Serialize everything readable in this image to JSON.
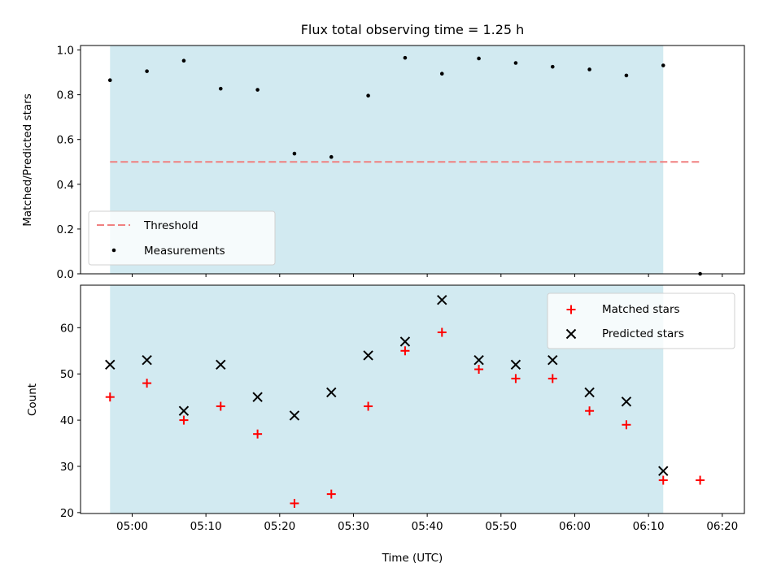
{
  "chart_data": [
    {
      "type": "scatter",
      "title": "Flux total observing time = 1.25 h",
      "xlabel": "",
      "ylabel": "Matched/Predicted stars",
      "xlim": [
        293,
        383
      ],
      "ylim": [
        0.0,
        1.02
      ],
      "yticks": [
        0.0,
        0.2,
        0.4,
        0.6,
        0.8,
        1.0
      ],
      "ytick_labels": [
        "0.0",
        "0.2",
        "0.4",
        "0.6",
        "0.8",
        "1.0"
      ],
      "xticks": [
        300,
        310,
        320,
        330,
        340,
        350,
        360,
        370,
        380
      ],
      "shaded_span": [
        297,
        372
      ],
      "shade_color": "#add8e6",
      "threshold": {
        "name": "Threshold",
        "value": 0.5,
        "x_range": [
          297,
          377
        ],
        "color": "#f08080"
      },
      "series": [
        {
          "name": "Measurements",
          "color": "#000000",
          "x": [
            297,
            302,
            307,
            312,
            317,
            322,
            327,
            332,
            337,
            342,
            347,
            352,
            357,
            362,
            367,
            372,
            377
          ],
          "y": [
            0.865,
            0.905,
            0.952,
            0.827,
            0.822,
            0.537,
            0.522,
            0.796,
            0.965,
            0.894,
            0.962,
            0.942,
            0.925,
            0.913,
            0.886,
            0.931,
            0.0
          ]
        }
      ],
      "legend": {
        "position": "lower-left",
        "entries": [
          "Threshold",
          "Measurements"
        ]
      }
    },
    {
      "type": "scatter",
      "title": "",
      "xlabel": "Time (UTC)",
      "ylabel": "Count",
      "xlim": [
        293,
        383
      ],
      "ylim": [
        19.8,
        69.2
      ],
      "yticks": [
        20,
        30,
        40,
        50,
        60
      ],
      "ytick_labels": [
        "20",
        "30",
        "40",
        "50",
        "60"
      ],
      "xticks": [
        300,
        310,
        320,
        330,
        340,
        350,
        360,
        370,
        380
      ],
      "xtick_labels": [
        "05:00",
        "05:10",
        "05:20",
        "05:30",
        "05:40",
        "05:50",
        "06:00",
        "06:10",
        "06:20"
      ],
      "shaded_span": [
        297,
        372
      ],
      "shade_color": "#add8e6",
      "series": [
        {
          "name": "Matched stars",
          "marker": "plus",
          "color": "#ff0000",
          "x": [
            297,
            302,
            307,
            312,
            317,
            322,
            327,
            332,
            337,
            342,
            347,
            352,
            357,
            362,
            367,
            372,
            377
          ],
          "y": [
            45,
            48,
            40,
            43,
            37,
            22,
            24,
            43,
            55,
            59,
            51,
            49,
            49,
            42,
            39,
            27,
            27
          ]
        },
        {
          "name": "Predicted stars",
          "marker": "x",
          "color": "#000000",
          "x": [
            297,
            302,
            307,
            312,
            317,
            322,
            327,
            332,
            337,
            342,
            347,
            352,
            357,
            362,
            367,
            372
          ],
          "y": [
            52,
            53,
            42,
            52,
            45,
            41,
            46,
            54,
            57,
            66,
            53,
            52,
            53,
            46,
            44,
            29
          ]
        }
      ],
      "legend": {
        "position": "upper-right",
        "entries": [
          "Matched stars",
          "Predicted stars"
        ]
      }
    }
  ]
}
